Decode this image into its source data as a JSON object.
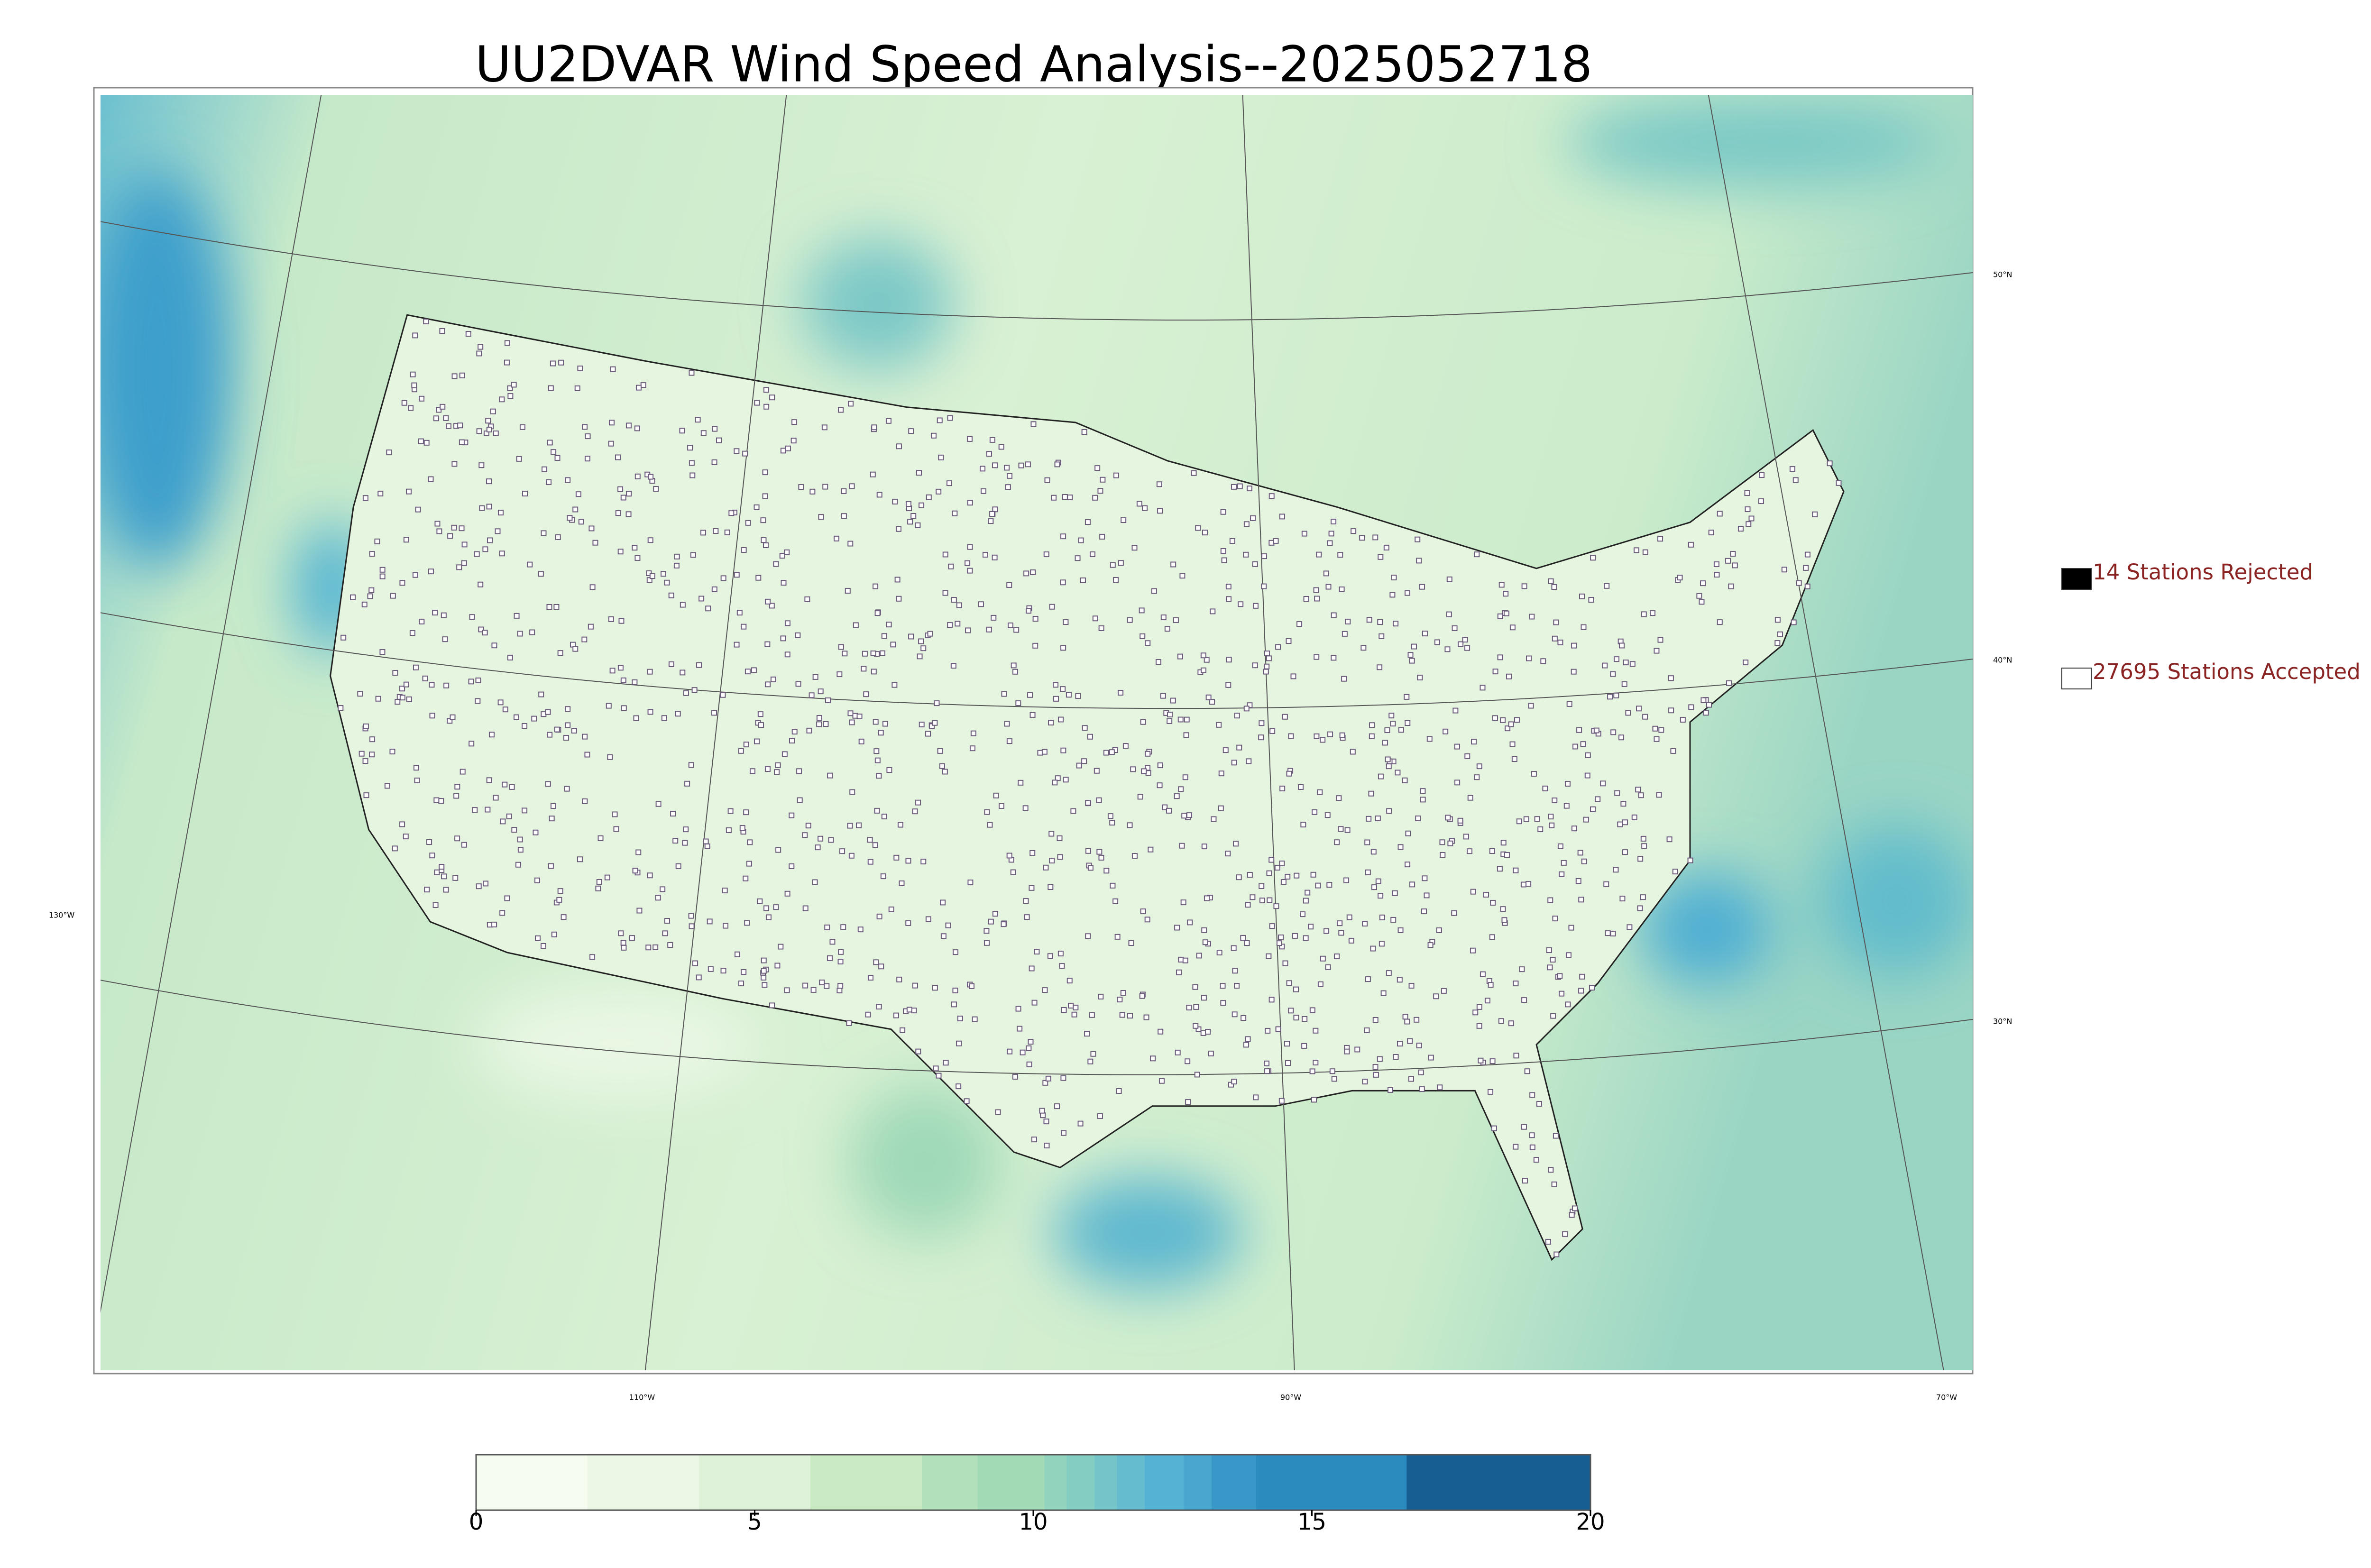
{
  "title": "UU2DVAR Wind Speed Analysis--2025052718",
  "legend": [
    {
      "label": "14 Stations Rejected",
      "color": "#000000"
    },
    {
      "label": "27695 Stations Accepted",
      "color": "#ffffff"
    }
  ],
  "graticule_labels": {
    "lat": [
      "50°N",
      "40°N",
      "30°N"
    ],
    "lon": [
      "130°W",
      "110°W",
      "90°W",
      "70°W"
    ]
  },
  "colorbar": {
    "lim": [
      0,
      20
    ],
    "ticks": [
      0,
      5,
      10,
      15,
      20
    ],
    "levels": [
      0,
      2,
      4,
      6,
      8,
      9,
      10.2,
      10.6,
      11.1,
      11.5,
      12,
      12.7,
      13.2,
      14,
      16.7,
      20
    ],
    "colors": [
      "#f7fcf0",
      "#ecf8e6",
      "#ddf2d8",
      "#c9eac3",
      "#b2e0bb",
      "#a2dab6",
      "#92d3bd",
      "#83cdc3",
      "#74c5c9",
      "#66bccf",
      "#56b2d4",
      "#48a6cf",
      "#3a98c8",
      "#2b8abe",
      "#165f93"
    ]
  }
}
